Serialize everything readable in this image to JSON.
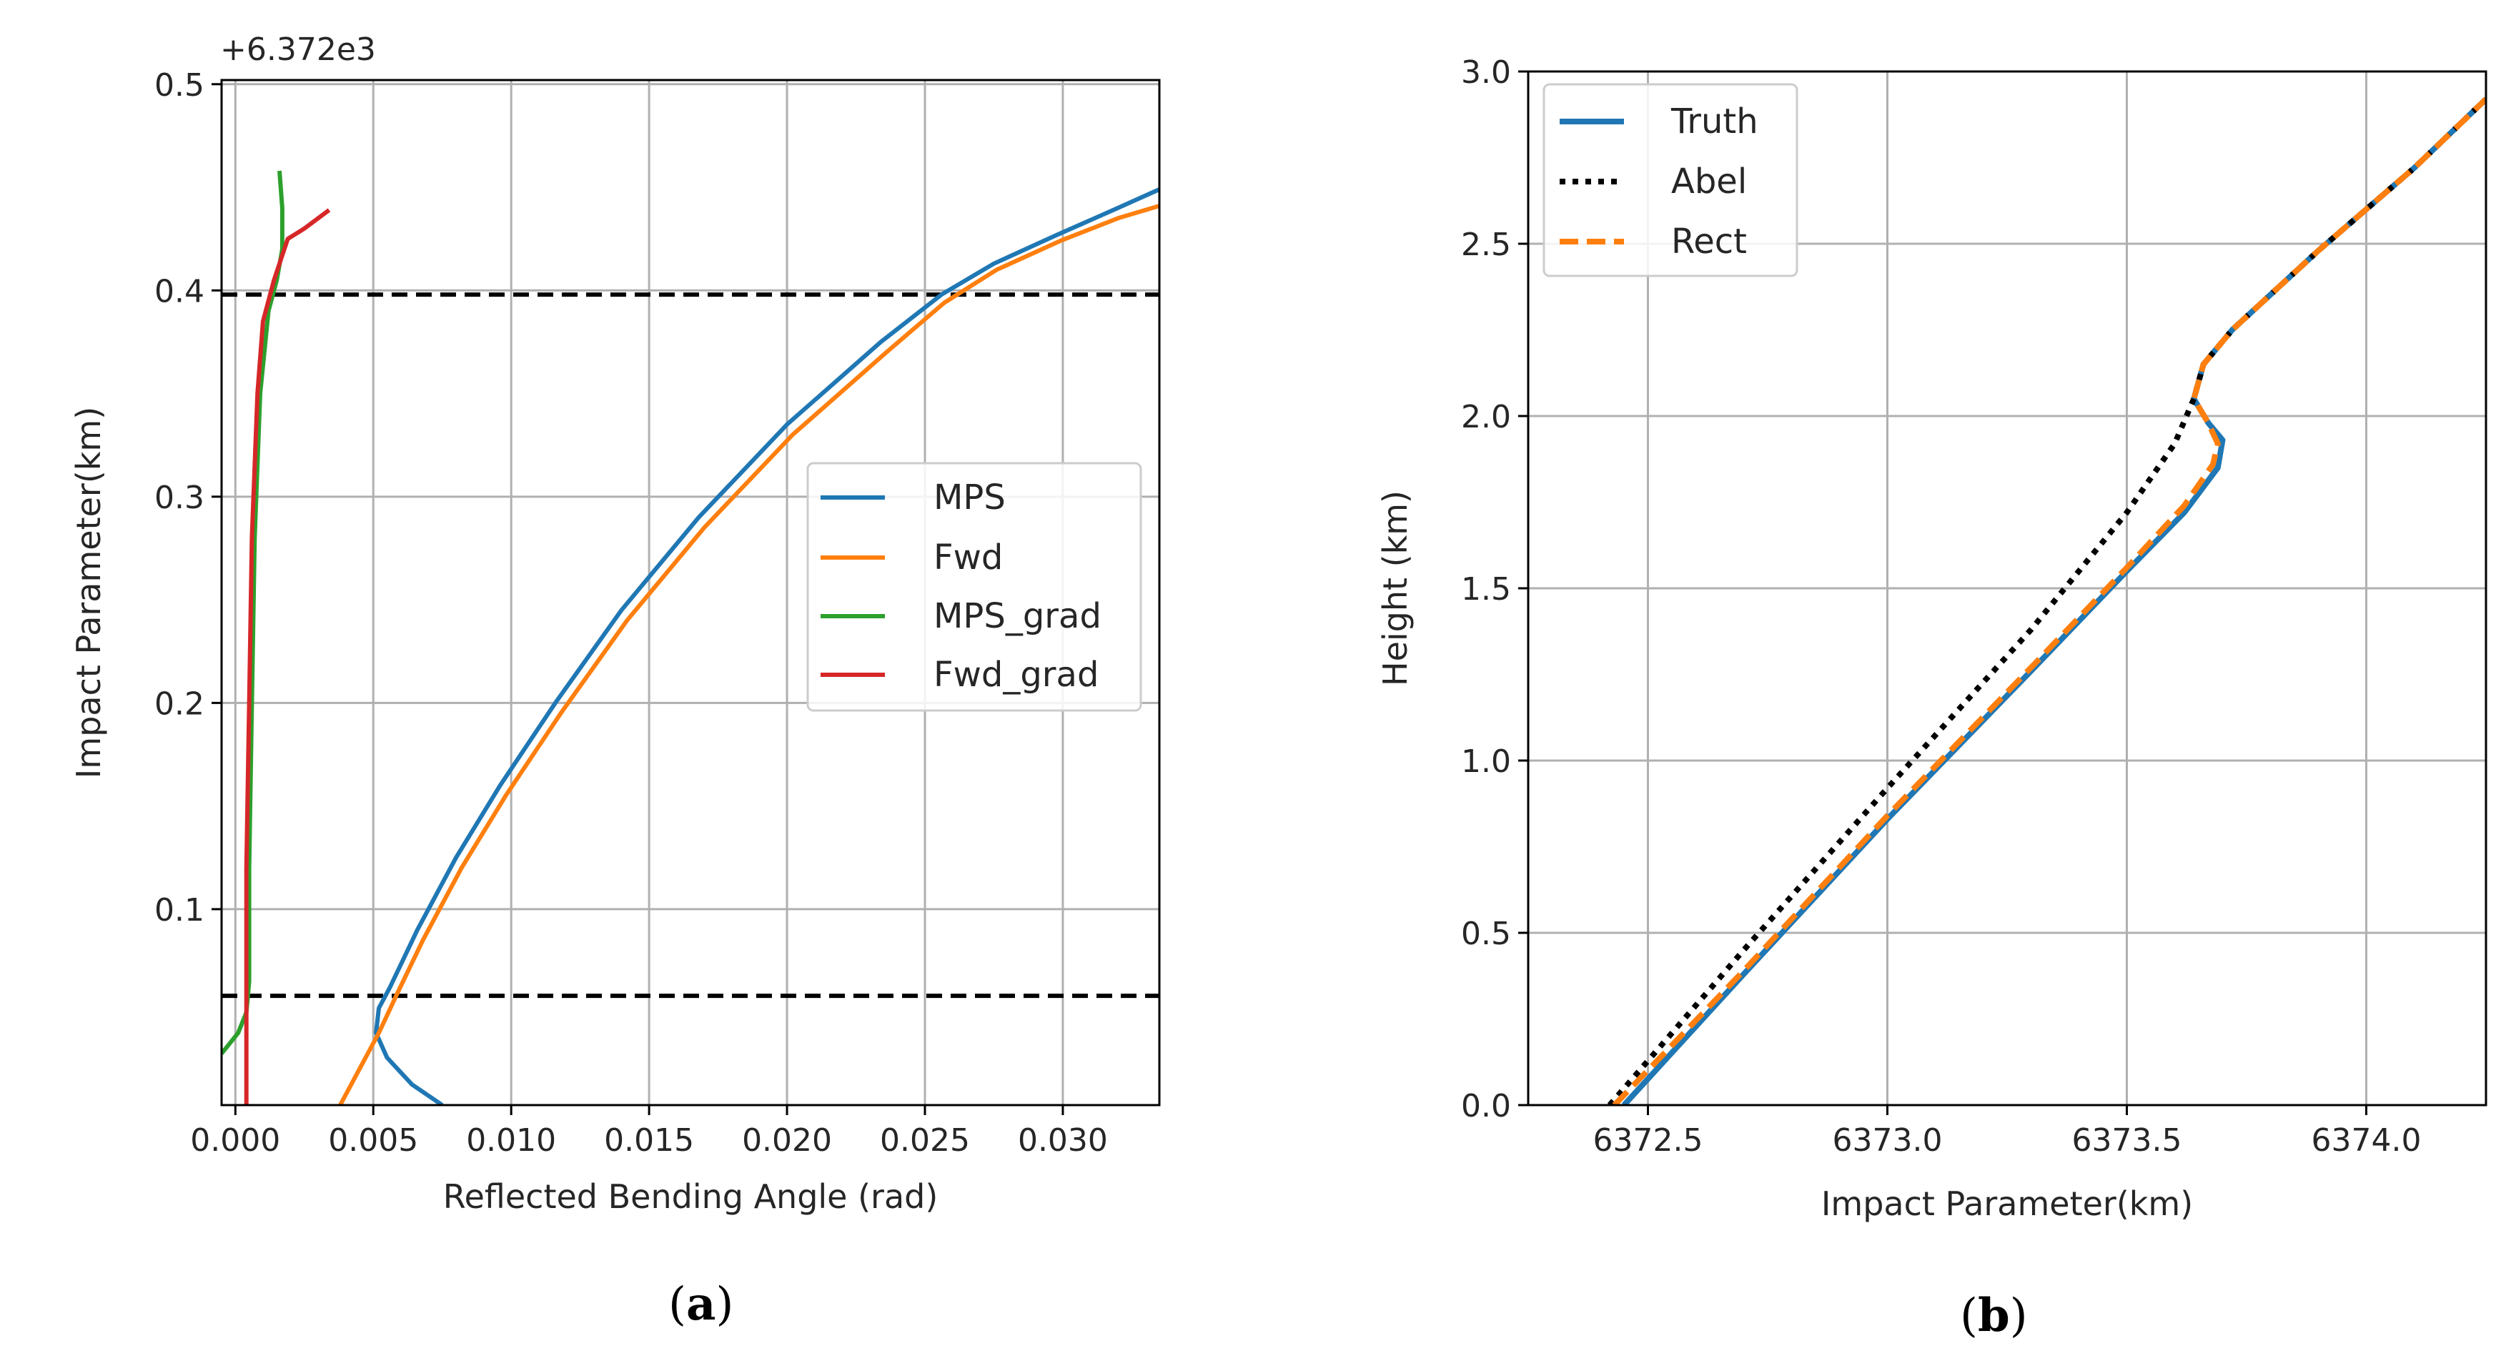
{
  "chart_data": [
    {
      "type": "line",
      "panel_caption": "a",
      "xlabel": "Reflected Bending Angle (rad)",
      "ylabel": "Impact Parameter(km)",
      "y_offset_text": "+6.372e3",
      "xlim": [
        -0.0005,
        0.0335
      ],
      "ylim": [
        0.005,
        0.502
      ],
      "x_ticks": [
        0.0,
        0.005,
        0.01,
        0.015,
        0.02,
        0.025,
        0.03
      ],
      "x_tick_labels": [
        "0.000",
        "0.005",
        "0.010",
        "0.015",
        "0.020",
        "0.025",
        "0.030"
      ],
      "y_ticks": [
        0.1,
        0.2,
        0.3,
        0.4,
        0.5
      ],
      "y_tick_labels": [
        "0.1",
        "0.2",
        "0.3",
        "0.4",
        "0.5"
      ],
      "grid": true,
      "legend_position": "center-right",
      "hlines": [
        {
          "y": 0.398,
          "style": "dashed",
          "color": "#000000"
        },
        {
          "y": 0.058,
          "style": "dashed",
          "color": "#000000"
        }
      ],
      "series": [
        {
          "name": "MPS",
          "color": "#1f77b4",
          "dash": "solid",
          "x": [
            0.0075,
            0.0064,
            0.0055,
            0.0051,
            0.0052,
            0.0056,
            0.0066,
            0.008,
            0.0096,
            0.0116,
            0.014,
            0.0168,
            0.02,
            0.0234,
            0.0256,
            0.0275,
            0.0298,
            0.032,
            0.0335
          ],
          "y": [
            0.005,
            0.015,
            0.028,
            0.04,
            0.052,
            0.062,
            0.09,
            0.125,
            0.16,
            0.2,
            0.245,
            0.29,
            0.335,
            0.375,
            0.398,
            0.413,
            0.427,
            0.44,
            0.449
          ]
        },
        {
          "name": "Fwd",
          "color": "#ff7f0e",
          "dash": "solid",
          "x": [
            0.0038,
            0.0046,
            0.0052,
            0.0059,
            0.0068,
            0.0082,
            0.0098,
            0.0118,
            0.0142,
            0.017,
            0.0202,
            0.0236,
            0.0257,
            0.0276,
            0.0299,
            0.032,
            0.0335
          ],
          "y": [
            0.005,
            0.025,
            0.04,
            0.06,
            0.085,
            0.12,
            0.155,
            0.195,
            0.24,
            0.285,
            0.33,
            0.37,
            0.394,
            0.41,
            0.424,
            0.435,
            0.441
          ]
        },
        {
          "name": "MPS_grad",
          "color": "#2ca02c",
          "dash": "solid",
          "x": [
            -0.0005,
            0.0001,
            0.0004,
            0.0005,
            0.0005,
            0.0006,
            0.0007,
            0.0009,
            0.0012,
            0.0015,
            0.0017,
            0.0017,
            0.0016
          ],
          "y": [
            0.03,
            0.04,
            0.05,
            0.065,
            0.12,
            0.2,
            0.28,
            0.35,
            0.39,
            0.405,
            0.42,
            0.44,
            0.458
          ]
        },
        {
          "name": "Fwd_grad",
          "color": "#d62728",
          "dash": "solid",
          "x": [
            0.0004,
            0.0004,
            0.0004,
            0.0005,
            0.0006,
            0.0008,
            0.001,
            0.0014,
            0.0019,
            0.0025,
            0.0034
          ],
          "y": [
            0.005,
            0.06,
            0.12,
            0.2,
            0.28,
            0.35,
            0.385,
            0.405,
            0.425,
            0.43,
            0.439
          ]
        }
      ]
    },
    {
      "type": "line",
      "panel_caption": "b",
      "xlabel": "Impact Parameter(km)",
      "ylabel": "Height (km)",
      "xlim": [
        6372.25,
        6374.25
      ],
      "ylim": [
        0.0,
        3.0
      ],
      "x_ticks": [
        6372.5,
        6373.0,
        6373.5,
        6374.0
      ],
      "x_tick_labels": [
        "6372.5",
        "6373.0",
        "6373.5",
        "6374.0"
      ],
      "y_ticks": [
        0.0,
        0.5,
        1.0,
        1.5,
        2.0,
        2.5,
        3.0
      ],
      "y_tick_labels": [
        "0.0",
        "0.5",
        "1.0",
        "1.5",
        "2.0",
        "2.5",
        "3.0"
      ],
      "grid": true,
      "legend_position": "top-left",
      "series": [
        {
          "name": "Truth",
          "color": "#1f77b4",
          "dash": "solid",
          "x": [
            6372.45,
            6372.7,
            6373.0,
            6373.3,
            6373.5,
            6373.62,
            6373.69,
            6373.7,
            6373.67,
            6373.64,
            6373.66,
            6373.72,
            6373.9,
            6374.1,
            6374.25
          ],
          "y": [
            0.0,
            0.38,
            0.83,
            1.26,
            1.55,
            1.72,
            1.85,
            1.93,
            1.98,
            2.05,
            2.15,
            2.25,
            2.48,
            2.72,
            2.92
          ]
        },
        {
          "name": "Abel",
          "color": "#000000",
          "dash": "dotted",
          "x": [
            6372.42,
            6372.7,
            6373.0,
            6373.3,
            6373.5,
            6373.6,
            6373.64,
            6373.66,
            6373.72,
            6373.9,
            6374.1,
            6374.25
          ],
          "y": [
            0.0,
            0.45,
            0.92,
            1.38,
            1.72,
            1.92,
            2.05,
            2.15,
            2.25,
            2.48,
            2.72,
            2.92
          ]
        },
        {
          "name": "Rect",
          "color": "#ff7f0e",
          "dash": "dashed",
          "x": [
            6372.43,
            6372.7,
            6373.0,
            6373.3,
            6373.5,
            6373.62,
            6373.68,
            6373.69,
            6373.67,
            6373.64,
            6373.66,
            6373.72,
            6373.9,
            6374.1,
            6374.25
          ],
          "y": [
            0.0,
            0.39,
            0.84,
            1.27,
            1.56,
            1.74,
            1.86,
            1.92,
            1.98,
            2.05,
            2.15,
            2.25,
            2.48,
            2.72,
            2.92
          ]
        }
      ]
    }
  ]
}
